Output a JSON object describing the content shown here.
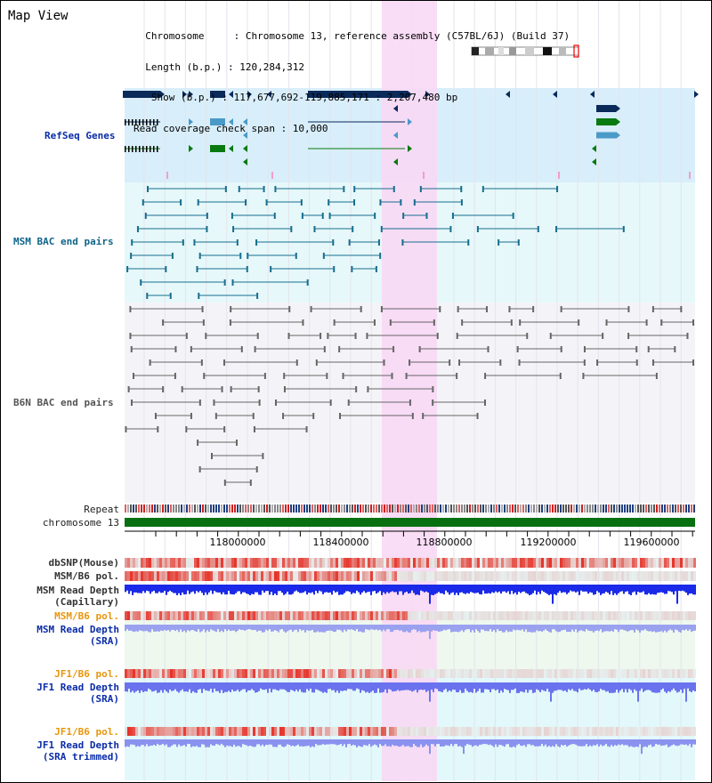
{
  "header": {
    "title": "Map View",
    "info_lines": [
      "  Chromosome     : Chromosome 13, reference assembly (C57BL/6J) (Build 37)",
      "  Length (b.p.) : 120,284,312",
      "   Show (b.p.) : 117,677,692-119,885,171 : 2,207,480 bp",
      "Read coverage check span : 10,000"
    ]
  },
  "tracks": {
    "refseq": "RefSeq Genes",
    "msm_bac": "MSM BAC end pairs",
    "b6n_bac": "B6N BAC end pairs",
    "repeat": "Repeat",
    "chromosome": "chromosome 13",
    "dbsnp": "dbSNP(Mouse)",
    "msm_pol1": "MSM/B6 pol.",
    "msm_depth_cap": "MSM Read Depth\n(Capillary)",
    "msm_pol2": "MSM/B6 pol.",
    "msm_depth_sra": "MSM Read Depth\n(SRA)",
    "jf1_pol1": "JF1/B6 pol.",
    "jf1_depth_sra": "JF1 Read Depth\n(SRA)",
    "jf1_pol2": "JF1/B6 pol.",
    "jf1_depth_trim": "JF1 Read Depth\n(SRA trimmed)"
  },
  "axis": {
    "ticks": [
      "118000000",
      "118400000",
      "118800000",
      "119200000",
      "119600000"
    ]
  },
  "colors": {
    "refseq_bg": "#d8eefa",
    "msm_bg": "#e6f8fa",
    "b6n_bg": "#f4f4f8",
    "highlight": "#f8d8f4",
    "gene_navy": "#0a2a5a",
    "gene_green": "#087a10",
    "gene_light": "#4a9ac8",
    "bac_teal": "#186e8e",
    "bac_grey": "#666666",
    "chromosome": "#087010"
  }
}
